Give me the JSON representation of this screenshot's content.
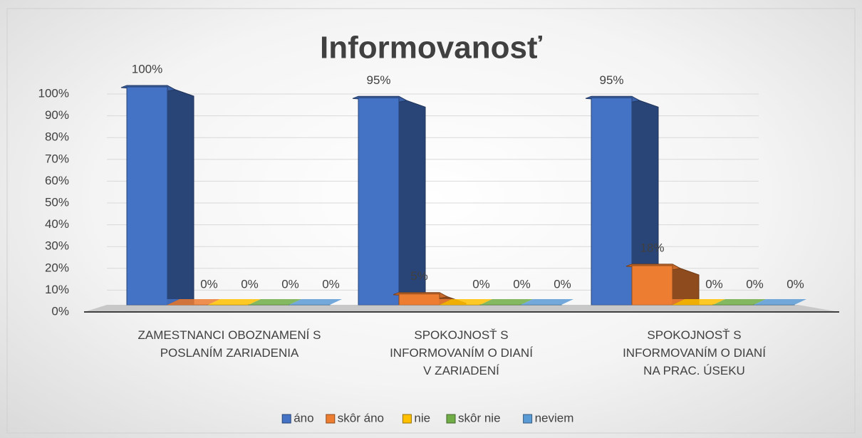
{
  "chart_data": {
    "type": "bar3d",
    "title": "Informovanosť",
    "categories": [
      "ZAMESTNANCI OBOZNAMENÍ S POSLANÍM ZARIADENIA",
      "SPOKOJNOSŤ S INFORMOVANÍM O DIANÍ V ZARIADENÍ",
      "SPOKOJNOSŤ S INFORMOVANÍM O DIANÍ NA PRAC. ÚSEKU"
    ],
    "series": [
      {
        "name": "áno",
        "color": "#4472c4",
        "values": [
          100,
          95,
          95
        ],
        "value_labels": [
          "100%",
          "95%",
          "95%"
        ]
      },
      {
        "name": "skôr áno",
        "color": "#ed7d31",
        "values": [
          0,
          5,
          18
        ],
        "value_labels": [
          "0%",
          "5%",
          "18%"
        ]
      },
      {
        "name": "nie",
        "color": "#ffc000",
        "values": [
          0,
          0,
          0
        ],
        "value_labels": [
          "0%",
          "0%",
          "0%"
        ]
      },
      {
        "name": "skôr nie",
        "color": "#70ad47",
        "values": [
          0,
          0,
          0
        ],
        "value_labels": [
          "0%",
          "0%",
          "0%"
        ]
      },
      {
        "name": "neviem",
        "color": "#5b9bd5",
        "values": [
          0,
          0,
          0
        ],
        "value_labels": [
          "0%",
          "0%",
          "0%"
        ]
      }
    ],
    "ylim": [
      0,
      100
    ],
    "yticks": [
      {
        "value": 0,
        "label": "0%"
      },
      {
        "value": 10,
        "label": "10%"
      },
      {
        "value": 20,
        "label": "20%"
      },
      {
        "value": 30,
        "label": "30%"
      },
      {
        "value": 40,
        "label": "40%"
      },
      {
        "value": 50,
        "label": "50%"
      },
      {
        "value": 60,
        "label": "60%"
      },
      {
        "value": 70,
        "label": "70%"
      },
      {
        "value": 80,
        "label": "80%"
      },
      {
        "value": 90,
        "label": "90%"
      },
      {
        "value": 100,
        "label": "100%"
      }
    ],
    "grid": true,
    "legend": "bottom"
  }
}
